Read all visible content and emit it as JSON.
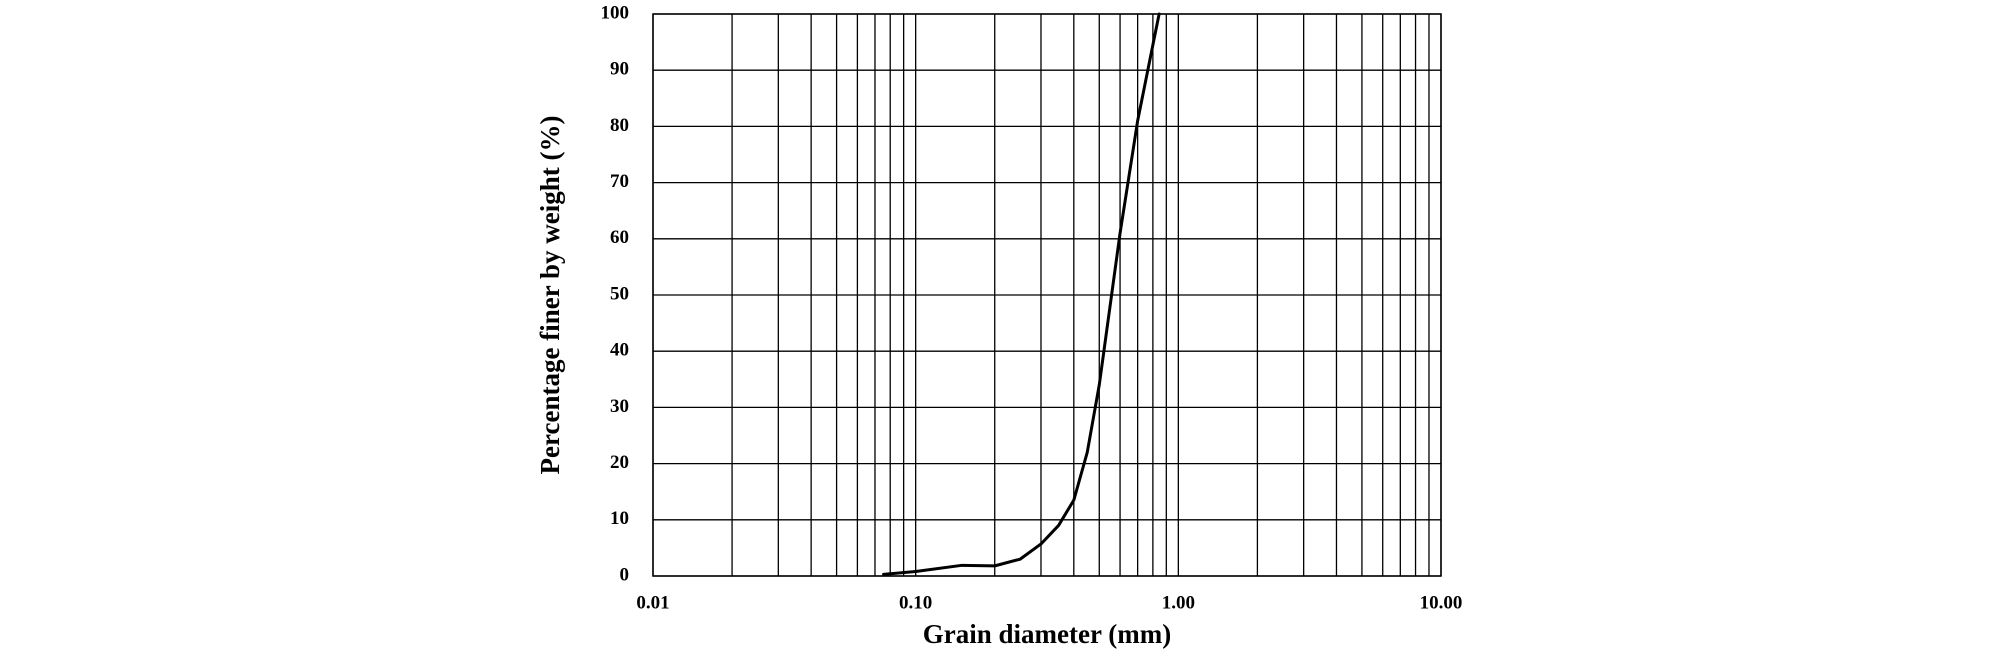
{
  "chart_data": {
    "type": "line",
    "x_label": "Grain  diameter (mm)",
    "y_label": "Percentage finer by weight (%)",
    "x": [
      0.0755,
      0.1,
      0.15,
      0.2,
      0.25,
      0.3,
      0.35,
      0.4,
      0.45,
      0.5,
      0.6,
      0.7,
      0.8,
      0.845
    ],
    "values": [
      0.3,
      0.8,
      1.9,
      1.8,
      3,
      5.7,
      9,
      13.5,
      22,
      34,
      61,
      81,
      94.5,
      100
    ],
    "color": "#000000",
    "xscale": "log",
    "xlim": [
      0.01,
      10
    ],
    "xticks": [
      0.01,
      {
        "value": 0.1,
        "label": "0.10"
      },
      {
        "value": 1,
        "label": "1.00"
      },
      {
        "value": 10,
        "label": "10.00"
      }
    ],
    "x_minor_ticks": [
      0.02,
      0.03,
      0.04,
      0.05,
      0.06,
      0.07,
      0.08,
      0.09,
      0.2,
      0.3,
      0.4,
      0.5,
      0.6,
      0.7,
      0.8,
      0.9,
      2,
      3,
      4,
      5,
      6,
      7,
      8,
      9
    ],
    "ylim": [
      0,
      100
    ],
    "yticks": [
      0,
      10,
      20,
      30,
      40,
      50,
      60,
      70,
      80,
      90,
      100
    ],
    "grid": true
  }
}
